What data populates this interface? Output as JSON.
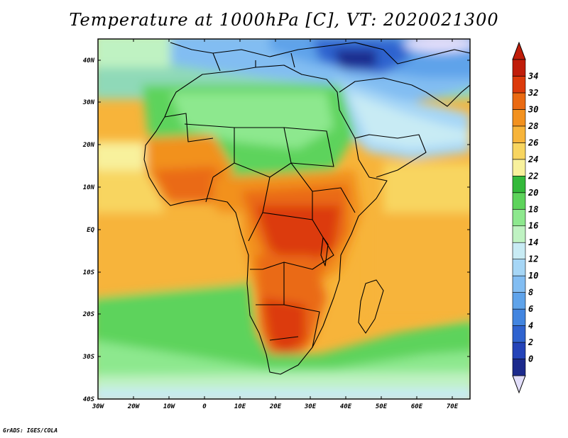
{
  "title": "Temperature at 1000hPa [C], VT: 2020021300",
  "credit": "GrADS: IGES/COLA",
  "map": {
    "variable": "Temperature at 1000hPa",
    "units": "C",
    "valid_time": "2020021300",
    "lon_range": [
      -30,
      75
    ],
    "lat_range": [
      -40,
      45
    ],
    "lat_ticks": [
      "40N",
      "30N",
      "20N",
      "10N",
      "EQ",
      "10S",
      "20S",
      "30S",
      "40S"
    ],
    "lon_ticks": [
      "30W",
      "20W",
      "10W",
      "0",
      "10E",
      "20E",
      "30E",
      "40E",
      "50E",
      "60E",
      "70E"
    ]
  },
  "colorbar": {
    "levels": [
      "0",
      "2",
      "4",
      "6",
      "8",
      "10",
      "12",
      "14",
      "16",
      "18",
      "20",
      "22",
      "24",
      "26",
      "28",
      "30",
      "32",
      "34"
    ],
    "colors": [
      "#1c2a8c",
      "#2443b8",
      "#2f63cf",
      "#4285e0",
      "#5fa3ea",
      "#82bdf2",
      "#a6d6f6",
      "#c8ebf4",
      "#bff2c2",
      "#8de88e",
      "#5dd35b",
      "#33b93a",
      "#f8f19c",
      "#f8d560",
      "#f7b43a",
      "#f2911f",
      "#ea6a12",
      "#dc3a0b",
      "#c01d0a"
    ],
    "under_color": "#e2defa",
    "over_color": "#c01d0a"
  }
}
